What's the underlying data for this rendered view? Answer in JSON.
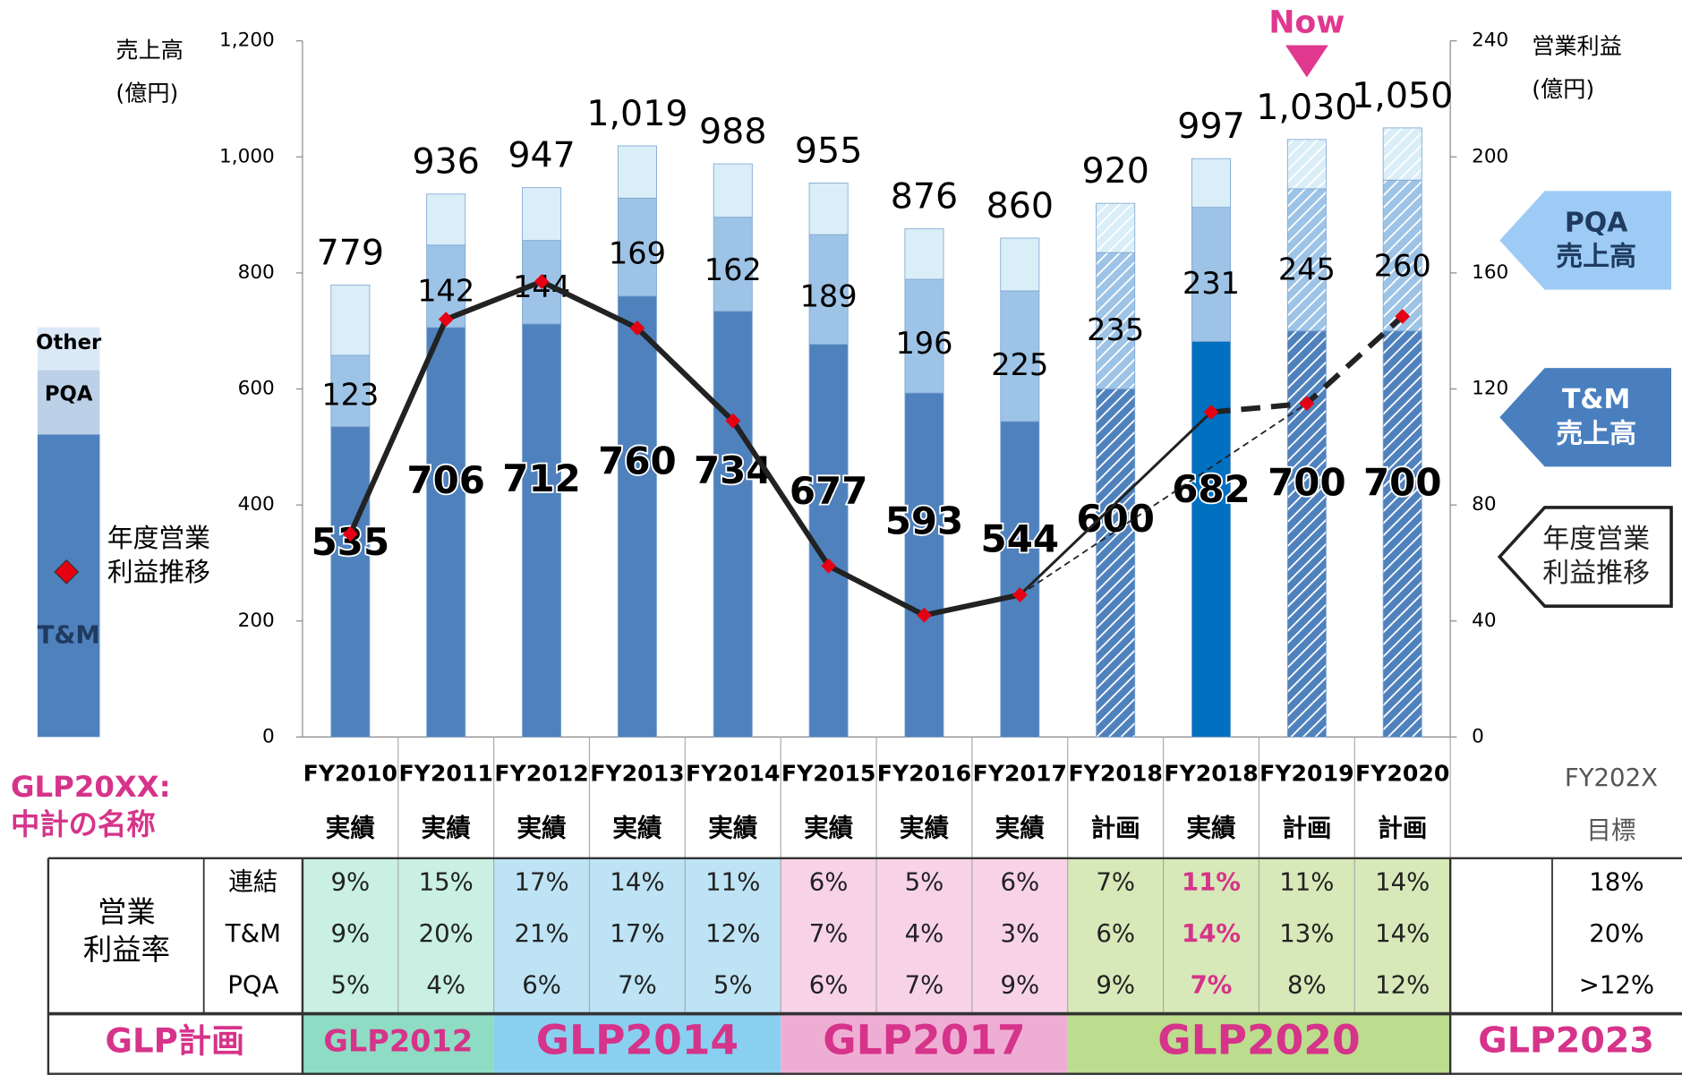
{
  "chart_data": {
    "type": "bar",
    "stacked": true,
    "y_label": "売上高\n(億円)",
    "y2_label": "営業利益\n(億円)",
    "annotation": "Now",
    "categories": [
      "FY2010",
      "FY2011",
      "FY2012",
      "FY2013",
      "FY2014",
      "FY2015",
      "FY2016",
      "FY2017",
      "FY2018",
      "FY2018",
      "FY2019",
      "FY2020"
    ],
    "category_status": [
      "実績",
      "実績",
      "実績",
      "実績",
      "実績",
      "実績",
      "実績",
      "実績",
      "計画",
      "実績",
      "計画",
      "計画"
    ],
    "hatched": [
      false,
      false,
      false,
      false,
      false,
      false,
      false,
      false,
      true,
      false,
      true,
      true
    ],
    "series": [
      {
        "name": "T&M",
        "color": "#4f81bd",
        "colors": [
          "#4f81bd",
          "#4f81bd",
          "#4f81bd",
          "#4f81bd",
          "#4f81bd",
          "#4f81bd",
          "#4f81bd",
          "#4f81bd",
          "#4f81bd",
          "#0070c0",
          "#4f81bd",
          "#4f81bd"
        ],
        "values": [
          535,
          706,
          712,
          760,
          734,
          677,
          593,
          544,
          600,
          682,
          700,
          700
        ]
      },
      {
        "name": "PQA",
        "color": "#9dc3e6",
        "values": [
          123,
          142,
          144,
          169,
          162,
          189,
          196,
          225,
          235,
          231,
          245,
          260
        ]
      },
      {
        "name": "Other",
        "color": "#daeef8",
        "values": [
          121,
          88,
          91,
          90,
          92,
          89,
          87,
          91,
          85,
          84,
          85,
          90
        ]
      },
      {
        "name": "年度営業\n利益推移",
        "type": "line",
        "axis": "y2",
        "color": "#222222",
        "marker_color": "#e60012",
        "values": [
          70,
          144,
          157,
          141,
          109,
          59,
          42,
          49,
          null,
          112,
          115,
          145
        ]
      }
    ],
    "totals": {
      "values": [
        779,
        936,
        947,
        1019,
        988,
        955,
        876,
        860,
        920,
        997,
        1030,
        1050
      ],
      "value_labels": [
        "779",
        "936",
        "947",
        "1,019",
        "988",
        "955",
        "876",
        "860",
        "920",
        "997",
        "1,030",
        "1,050"
      ]
    },
    "ylim": [
      0,
      1200
    ],
    "yticks": [
      0,
      200,
      400,
      600,
      800,
      {
        "value": 1000,
        "label": "1,000"
      },
      {
        "value": 1200,
        "label": "1,200"
      }
    ],
    "y2lim": [
      0,
      240
    ],
    "y2ticks": [
      0,
      40,
      80,
      120,
      160,
      200,
      240
    ],
    "legend_position": "left",
    "side_labels": [
      "PQA\n売上高",
      "T&M\n売上高",
      "年度営業\n利益推移"
    ]
  },
  "plan_note": "GLP20XX:\n中計の名称",
  "target_header": [
    "FY202X",
    "目標"
  ],
  "table": {
    "label": "営業\n利益率",
    "highlight_column": 9,
    "rows": [
      {
        "name": "連結",
        "values": [
          "9%",
          "15%",
          "17%",
          "14%",
          "11%",
          "6%",
          "5%",
          "6%",
          "7%",
          "11%",
          "11%",
          "14%"
        ],
        "target": "18%"
      },
      {
        "name": "T&M",
        "values": [
          "9%",
          "20%",
          "21%",
          "17%",
          "12%",
          "7%",
          "4%",
          "3%",
          "6%",
          "14%",
          "13%",
          "14%"
        ],
        "target": "20%"
      },
      {
        "name": "PQA",
        "values": [
          "5%",
          "4%",
          "6%",
          "7%",
          "5%",
          "6%",
          "7%",
          "9%",
          "9%",
          "7%",
          "8%",
          "12%"
        ],
        "target": ">12%"
      }
    ],
    "plan_label": "GLP計画",
    "plans": [
      {
        "name": "GLP2012",
        "columns": 2,
        "color": "#c9f0e3",
        "dark": "#8fdcc4"
      },
      {
        "name": "GLP2014",
        "columns": 3,
        "color": "#bde3f5",
        "dark": "#89d0f0"
      },
      {
        "name": "GLP2017",
        "columns": 3,
        "color": "#f8d3e8",
        "dark": "#eeaed3"
      },
      {
        "name": "GLP2020",
        "columns": 4,
        "color": "#d7e9b8",
        "dark": "#bcdc8e"
      }
    ],
    "target_plan": "GLP2023"
  }
}
